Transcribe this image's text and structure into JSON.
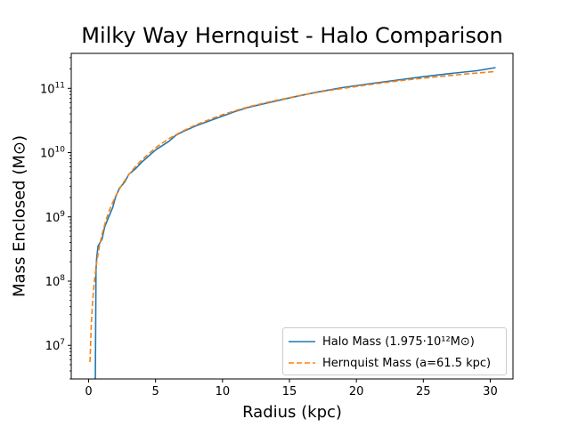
{
  "chart_data": {
    "type": "line",
    "title": "Milky Way Hernquist - Halo Comparison",
    "xlabel": "Radius (kpc)",
    "ylabel": "Mass Enclosed (M⊙)",
    "xlim": [
      -1.3,
      31.7
    ],
    "ylim": [
      3000000,
      350000000000
    ],
    "yscale": "log",
    "xticks": [
      0,
      5,
      10,
      15,
      20,
      25,
      30
    ],
    "yticks": [
      {
        "value": 10000000,
        "base": "10",
        "exp": "7"
      },
      {
        "value": 100000000,
        "base": "10",
        "exp": "8"
      },
      {
        "value": 1000000000,
        "base": "10",
        "exp": "9"
      },
      {
        "value": 10000000000,
        "base": "10",
        "exp": "10"
      },
      {
        "value": 100000000000,
        "base": "10",
        "exp": "11"
      }
    ],
    "grid": false,
    "legend_position": "lower-right",
    "series": [
      {
        "name": "Halo Mass (1.975·10¹²M⊙)",
        "color": "#1f77b4",
        "dash": "solid",
        "x": [
          0.5,
          0.55,
          0.6,
          0.7,
          0.8,
          1.0,
          1.2,
          1.5,
          1.8,
          2.0,
          2.3,
          2.7,
          3.0,
          3.5,
          4.0,
          5.0,
          6.0,
          6.5,
          7.0,
          8.0,
          9.0,
          10.0,
          11.0,
          12.0,
          13.0,
          15.0,
          17.0,
          19.0,
          21.0,
          23.0,
          25.0,
          27.0,
          29.0,
          30.4
        ],
        "y": [
          3000000,
          150000000,
          230000000,
          350000000,
          380000000,
          450000000,
          700000000,
          1000000000,
          1400000000,
          2000000000,
          2800000000,
          3500000000,
          4600000000,
          5600000000,
          7200000000,
          11000000000,
          15000000000,
          18500000000,
          21000000000,
          26000000000,
          31000000000,
          37000000000,
          44000000000,
          51000000000,
          57000000000,
          71000000000,
          87000000000,
          103000000000,
          118000000000,
          134000000000,
          152000000000,
          170000000000,
          188000000000,
          210000000000
        ]
      },
      {
        "name": "Hernquist Mass (a=61.5 kpc)",
        "color": "#ff7f0e",
        "dash": "dashed",
        "x": [
          0.1,
          0.2,
          0.3,
          0.4,
          0.5,
          0.6,
          0.8,
          1.0,
          1.3,
          1.6,
          2.0,
          2.5,
          3.0,
          3.5,
          4.0,
          5.0,
          6.0,
          7.0,
          8.0,
          10.0,
          12.0,
          14.0,
          16.0,
          18.0,
          20.0,
          22.0,
          24.0,
          26.0,
          28.0,
          30.4
        ],
        "y": [
          5500000,
          22000000,
          50000000,
          88000000,
          135000000,
          195000000,
          345000000,
          535000000,
          900000000,
          1350000000,
          2080000000,
          3200000000,
          4550000000,
          6100000000,
          7800000000,
          11900000000,
          16500000000,
          21500000000,
          27000000000,
          39000000000,
          52000000000,
          65000000000,
          79000000000,
          93000000000,
          107000000000,
          122000000000,
          137000000000,
          151000000000,
          166000000000,
          183000000000
        ]
      }
    ]
  }
}
